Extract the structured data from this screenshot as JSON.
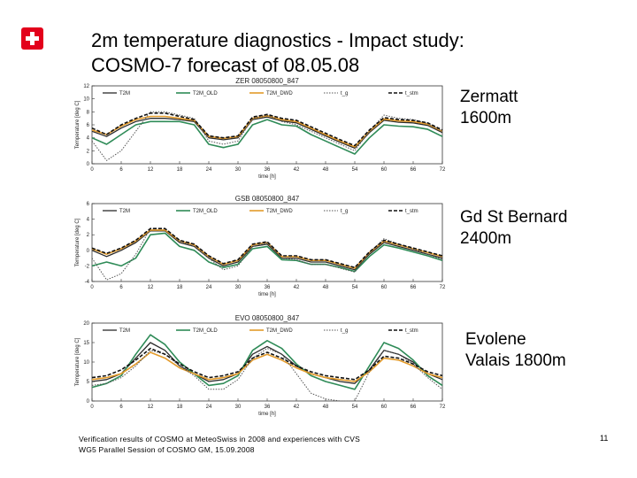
{
  "title": {
    "line1": "2m temperature diagnostics - Impact study:",
    "line2": "COSMO-7 forecast of 08.05.08"
  },
  "logo_icon": "swiss-cross-icon",
  "colors": {
    "T2M": "#2b2b2b",
    "T2M_OLD": "#2e8b57",
    "T2M_DWD": "#e39b2b",
    "t_g": "#555555",
    "t_stm": "#111111"
  },
  "footer": {
    "line1": "Verification results of COSMO at MeteoSwiss in 2008 and experiences with CVS",
    "line2": "WG5 Parallel Session of COSMO GM, 15.09.2008",
    "page": "11"
  },
  "sites": [
    {
      "name": "Zermatt",
      "elevation": "1600m"
    },
    {
      "name": "Gd St Bernard",
      "elevation": "2400m"
    },
    {
      "name": "Evolene",
      "elevation": "Valais 1800m"
    }
  ],
  "chart_data": [
    {
      "type": "line",
      "title": "ZER  08050800_847",
      "xlabel": "time [h]",
      "ylabel": "Temperature [deg C]",
      "xlim": [
        0,
        72
      ],
      "ylim": [
        0,
        12
      ],
      "xticks": [
        "0",
        "6",
        "12",
        "18",
        "24",
        "30",
        "36",
        "42",
        "48",
        "54",
        "60",
        "66",
        "72"
      ],
      "yticks": [
        "0",
        "2",
        "4",
        "6",
        "8",
        "10",
        "12"
      ],
      "x": [
        0,
        3,
        6,
        9,
        12,
        15,
        18,
        21,
        24,
        27,
        30,
        33,
        36,
        39,
        42,
        45,
        48,
        51,
        54,
        57,
        60,
        63,
        66,
        69,
        72
      ],
      "series": [
        {
          "name": "T2M",
          "values": [
            5.0,
            4.2,
            5.5,
            6.5,
            7.0,
            7.0,
            6.8,
            6.5,
            4.0,
            3.7,
            4.0,
            6.8,
            7.2,
            6.6,
            6.3,
            5.3,
            4.3,
            3.3,
            2.4,
            4.8,
            6.7,
            6.4,
            6.3,
            5.9,
            4.8
          ]
        },
        {
          "name": "T2M_OLD",
          "values": [
            4.0,
            3.0,
            4.5,
            6.0,
            6.5,
            6.5,
            6.5,
            6.0,
            3.0,
            2.5,
            3.0,
            6.0,
            6.8,
            6.0,
            5.8,
            4.5,
            3.5,
            2.5,
            1.5,
            4.0,
            6.0,
            5.8,
            5.7,
            5.3,
            4.2
          ]
        },
        {
          "name": "T2M_DWD",
          "values": [
            5.2,
            4.5,
            5.8,
            6.8,
            7.3,
            7.3,
            7.0,
            6.7,
            4.2,
            3.9,
            4.2,
            7.0,
            7.4,
            6.8,
            6.5,
            5.5,
            4.5,
            3.5,
            2.6,
            5.0,
            6.9,
            6.6,
            6.5,
            6.1,
            5.0
          ]
        },
        {
          "name": "t_g",
          "values": [
            3.5,
            0.5,
            2.0,
            5.0,
            8.0,
            8.0,
            7.5,
            7.0,
            3.5,
            3.0,
            3.5,
            7.0,
            7.5,
            6.5,
            6.0,
            5.0,
            4.0,
            3.0,
            2.0,
            5.0,
            7.5,
            7.0,
            6.8,
            6.2,
            5.0
          ]
        },
        {
          "name": "t_stm",
          "values": [
            5.5,
            4.5,
            6.0,
            7.0,
            7.8,
            7.8,
            7.3,
            6.8,
            4.3,
            4.0,
            4.3,
            7.2,
            7.6,
            7.0,
            6.7,
            5.7,
            4.7,
            3.7,
            2.8,
            5.2,
            7.1,
            6.8,
            6.7,
            6.3,
            5.2
          ]
        }
      ],
      "legend": [
        "T2M",
        "T2M_OLD",
        "T2M_DWD",
        "t_g",
        "t_stm"
      ]
    },
    {
      "type": "line",
      "title": "GSB  08050800_847",
      "xlabel": "time [h]",
      "ylabel": "Temperature [deg C]",
      "xlim": [
        0,
        72
      ],
      "ylim": [
        -4,
        6
      ],
      "xticks": [
        "0",
        "6",
        "12",
        "18",
        "24",
        "30",
        "36",
        "42",
        "48",
        "54",
        "60",
        "66",
        "72"
      ],
      "yticks": [
        "-4",
        "-2",
        "0",
        "2",
        "4",
        "6"
      ],
      "x": [
        0,
        3,
        6,
        9,
        12,
        15,
        18,
        21,
        24,
        27,
        30,
        33,
        36,
        39,
        42,
        45,
        48,
        51,
        54,
        57,
        60,
        63,
        66,
        69,
        72
      ],
      "series": [
        {
          "name": "T2M",
          "values": [
            0.0,
            -0.8,
            0.0,
            1.0,
            2.5,
            2.5,
            1.0,
            0.5,
            -1.0,
            -2.0,
            -1.5,
            0.5,
            0.8,
            -1.0,
            -1.0,
            -1.5,
            -1.5,
            -2.0,
            -2.5,
            -0.5,
            1.0,
            0.5,
            0.0,
            -0.5,
            -1.0
          ]
        },
        {
          "name": "T2M_OLD",
          "values": [
            -2.0,
            -1.5,
            -2.0,
            -1.0,
            2.0,
            2.2,
            0.5,
            0.0,
            -1.5,
            -2.2,
            -1.8,
            0.2,
            0.5,
            -1.2,
            -1.3,
            -1.8,
            -1.8,
            -2.2,
            -2.7,
            -0.8,
            0.7,
            0.3,
            -0.2,
            -0.7,
            -1.3
          ]
        },
        {
          "name": "T2M_DWD",
          "values": [
            0.2,
            -0.5,
            0.2,
            1.2,
            2.6,
            2.6,
            1.2,
            0.7,
            -0.8,
            -1.8,
            -1.3,
            0.7,
            1.0,
            -0.8,
            -0.8,
            -1.3,
            -1.3,
            -1.8,
            -2.3,
            -0.3,
            1.2,
            0.7,
            0.2,
            -0.3,
            -0.8
          ]
        },
        {
          "name": "t_g",
          "values": [
            -1.0,
            -3.8,
            -3.0,
            -0.5,
            2.8,
            2.8,
            1.2,
            0.5,
            -1.0,
            -2.5,
            -2.0,
            0.5,
            1.0,
            -1.0,
            -1.2,
            -1.8,
            -1.8,
            -2.3,
            -2.8,
            -0.3,
            1.5,
            0.8,
            0.2,
            -0.5,
            -1.2
          ]
        },
        {
          "name": "t_stm",
          "values": [
            0.3,
            -0.4,
            0.3,
            1.3,
            2.8,
            2.8,
            1.3,
            0.8,
            -0.7,
            -1.7,
            -1.2,
            0.8,
            1.1,
            -0.7,
            -0.7,
            -1.2,
            -1.2,
            -1.7,
            -2.2,
            -0.2,
            1.3,
            0.8,
            0.3,
            -0.2,
            -0.7
          ]
        }
      ],
      "legend": [
        "T2M",
        "T2M_OLD",
        "T2M_DWD",
        "t_g",
        "t_stm"
      ]
    },
    {
      "type": "line",
      "title": "EVO  08050800_847",
      "xlabel": "time [h]",
      "ylabel": "Temperature [deg C]",
      "xlim": [
        0,
        72
      ],
      "ylim": [
        0,
        20
      ],
      "xticks": [
        "0",
        "6",
        "12",
        "18",
        "24",
        "30",
        "36",
        "42",
        "48",
        "54",
        "60",
        "66",
        "72"
      ],
      "yticks": [
        "0",
        "5",
        "10",
        "15",
        "20"
      ],
      "x": [
        0,
        3,
        6,
        9,
        12,
        15,
        18,
        21,
        24,
        27,
        30,
        33,
        36,
        39,
        42,
        45,
        48,
        51,
        54,
        57,
        60,
        63,
        66,
        69,
        72
      ],
      "series": [
        {
          "name": "T2M",
          "values": [
            5.0,
            5.5,
            7.0,
            11.0,
            15.0,
            13.0,
            9.0,
            7.0,
            5.0,
            5.5,
            7.0,
            12.0,
            14.0,
            12.0,
            9.0,
            7.0,
            6.0,
            5.0,
            4.5,
            8.0,
            13.0,
            12.0,
            10.0,
            7.0,
            5.5
          ]
        },
        {
          "name": "T2M_OLD",
          "values": [
            3.5,
            4.5,
            6.5,
            12.0,
            17.0,
            14.5,
            10.0,
            7.0,
            4.0,
            4.5,
            6.5,
            13.0,
            15.5,
            13.5,
            9.5,
            6.5,
            5.0,
            4.0,
            3.0,
            9.0,
            15.0,
            13.5,
            10.5,
            6.5,
            4.0
          ]
        },
        {
          "name": "T2M_DWD",
          "values": [
            5.5,
            6.0,
            7.0,
            9.5,
            12.5,
            11.0,
            8.5,
            7.0,
            5.5,
            6.0,
            7.0,
            10.5,
            12.0,
            10.5,
            8.5,
            7.0,
            6.0,
            5.5,
            5.0,
            7.5,
            11.0,
            10.5,
            9.0,
            7.0,
            6.0
          ]
        },
        {
          "name": "t_g",
          "values": [
            4.0,
            4.5,
            6.0,
            9.0,
            13.0,
            12.0,
            9.0,
            6.5,
            3.0,
            3.0,
            5.5,
            11.0,
            13.5,
            12.0,
            7.0,
            2.0,
            0.5,
            0.0,
            0.0,
            7.5,
            13.0,
            12.0,
            9.5,
            6.0,
            3.0
          ]
        },
        {
          "name": "t_stm",
          "values": [
            6.0,
            6.5,
            8.0,
            10.5,
            13.5,
            12.0,
            9.5,
            7.5,
            6.0,
            6.5,
            7.5,
            11.0,
            12.5,
            11.0,
            9.0,
            7.5,
            6.5,
            6.0,
            5.5,
            8.0,
            11.5,
            11.0,
            9.5,
            7.5,
            6.5
          ]
        }
      ],
      "legend": [
        "T2M",
        "T2M_OLD",
        "T2M_DWD",
        "t_g",
        "t_stm"
      ]
    }
  ]
}
